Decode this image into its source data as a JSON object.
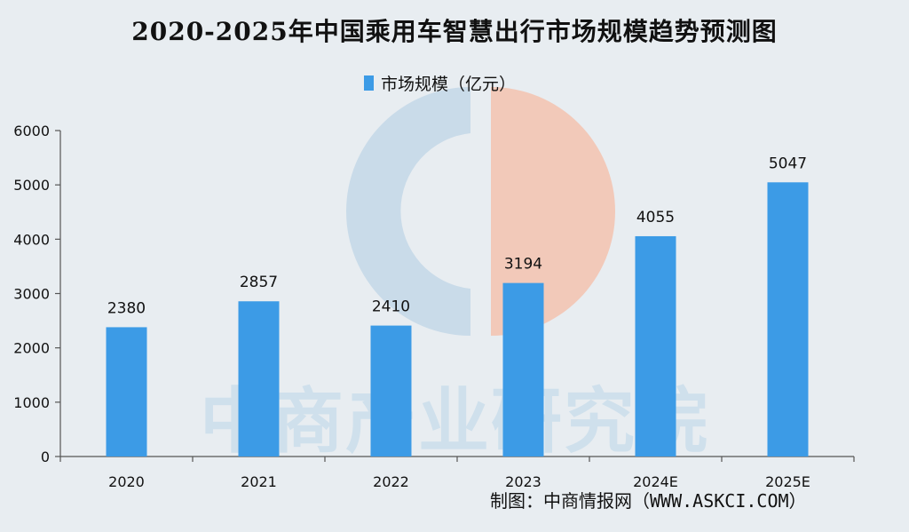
{
  "title": "2020-2025年中国乘用车智慧出行市场规模趋势预测图",
  "credit": {
    "label": "制图：中商情报网",
    "site": "（WWW.ASKCI.COM）"
  },
  "watermark": {
    "text": "中商产业研究院"
  },
  "colors": {
    "bar": "#3c9be6",
    "axis": "#555555",
    "logo_blue": "#c9dbe9",
    "logo_orange": "#f2c9b9"
  },
  "chart_data": {
    "type": "bar",
    "categories": [
      "2020",
      "2021",
      "2022",
      "2023",
      "2024E",
      "2025E"
    ],
    "series": [
      {
        "name": "市场规模（亿元）",
        "values": [
          2380,
          2857,
          2410,
          3194,
          4055,
          5047
        ]
      }
    ],
    "value_labels": [
      "2380",
      "2857",
      "2410",
      "3194",
      "4055",
      "5047"
    ],
    "ylim": [
      0,
      6000
    ],
    "yticks": [
      "0",
      "1000",
      "2000",
      "3000",
      "4000",
      "5000",
      "6000"
    ],
    "legend_position": "top-center",
    "grid": false
  }
}
